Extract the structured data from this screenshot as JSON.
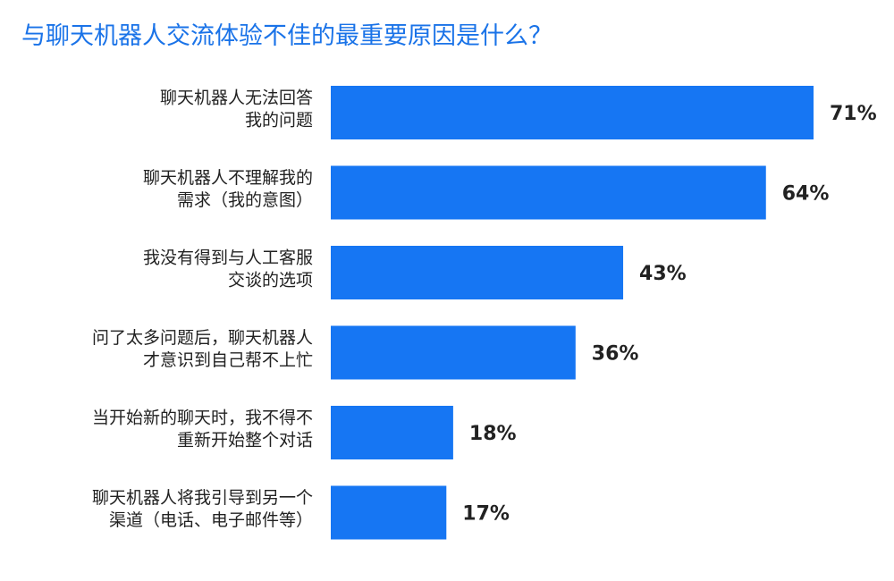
{
  "colors": {
    "title": "#1a73e8",
    "bar": "#1676f3",
    "text": "#222222"
  },
  "chart_data": {
    "type": "bar",
    "orientation": "horizontal",
    "title": "与聊天机器人交流体验不佳的最重要原因是什么？",
    "categories": [
      [
        "聊天机器人无法回答",
        "我的问题"
      ],
      [
        "聊天机器人不理解我的",
        "需求（我的意图）"
      ],
      [
        "我没有得到与人工客服",
        "交谈的选项"
      ],
      [
        "问了太多问题后，聊天机器人",
        "才意识到自己帮不上忙"
      ],
      [
        "当开始新的聊天时，我不得不",
        "重新开始整个对话"
      ],
      [
        "聊天机器人将我引导到另一个",
        "渠道（电话、电子邮件等）"
      ]
    ],
    "values": [
      71,
      64,
      43,
      36,
      18,
      17
    ],
    "value_labels": [
      "71%",
      "64%",
      "43%",
      "36%",
      "18%",
      "17%"
    ],
    "xlim": [
      0,
      71
    ],
    "grid": false,
    "legend": "none"
  }
}
